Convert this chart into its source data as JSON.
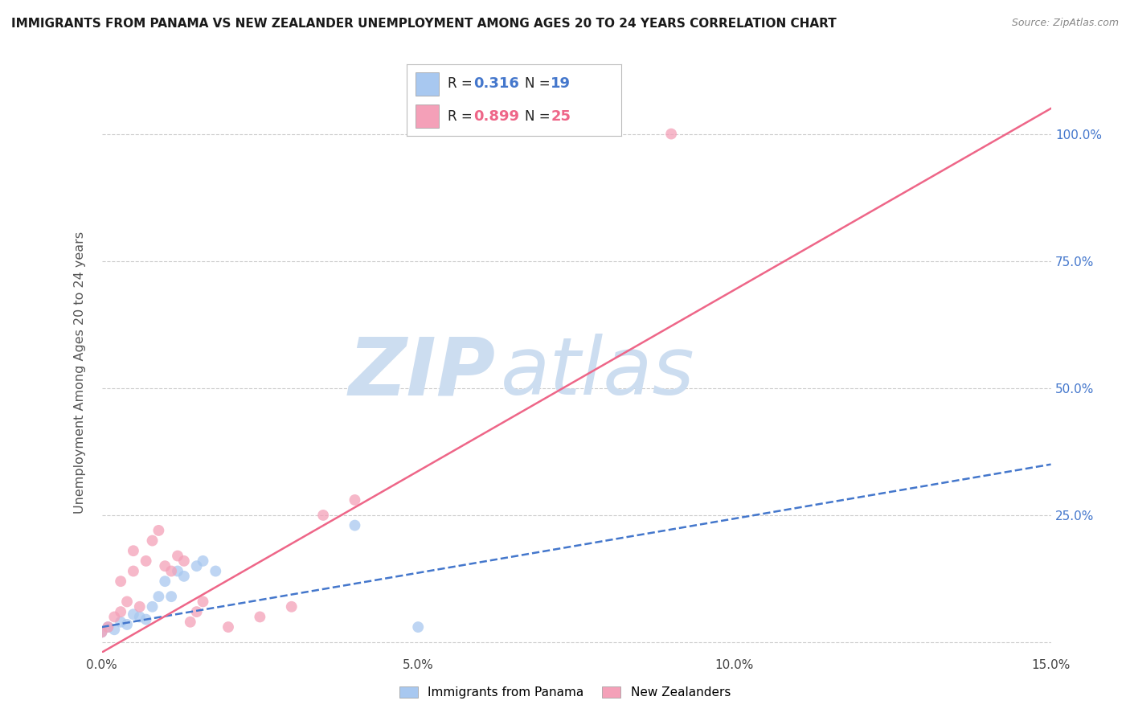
{
  "title": "IMMIGRANTS FROM PANAMA VS NEW ZEALANDER UNEMPLOYMENT AMONG AGES 20 TO 24 YEARS CORRELATION CHART",
  "source": "Source: ZipAtlas.com",
  "ylabel": "Unemployment Among Ages 20 to 24 years",
  "legend_label1": "Immigrants from Panama",
  "legend_label2": "New Zealanders",
  "R1": "0.316",
  "N1": "19",
  "R2": "0.899",
  "N2": "25",
  "xlim": [
    0.0,
    0.15
  ],
  "ylim": [
    -0.02,
    1.08
  ],
  "xticks": [
    0.0,
    0.05,
    0.1,
    0.15
  ],
  "xtick_labels": [
    "0.0%",
    "5.0%",
    "10.0%",
    "15.0%"
  ],
  "yticks": [
    0.0,
    0.25,
    0.5,
    0.75,
    1.0
  ],
  "ytick_labels_left": [
    "",
    "",
    "",
    "",
    ""
  ],
  "ytick_labels_right": [
    "",
    "25.0%",
    "50.0%",
    "75.0%",
    "100.0%"
  ],
  "color_blue": "#a8c8f0",
  "color_pink": "#f4a0b8",
  "color_blue_line": "#4477cc",
  "color_pink_line": "#ee6688",
  "color_grid": "#cccccc",
  "watermark_color": "#ccddf0",
  "blue_scatter_x": [
    0.0,
    0.001,
    0.002,
    0.003,
    0.004,
    0.005,
    0.006,
    0.007,
    0.008,
    0.009,
    0.01,
    0.011,
    0.012,
    0.013,
    0.015,
    0.016,
    0.018,
    0.04,
    0.05
  ],
  "blue_scatter_y": [
    0.02,
    0.03,
    0.025,
    0.04,
    0.035,
    0.055,
    0.05,
    0.045,
    0.07,
    0.09,
    0.12,
    0.09,
    0.14,
    0.13,
    0.15,
    0.16,
    0.14,
    0.23,
    0.03
  ],
  "pink_scatter_x": [
    0.0,
    0.001,
    0.002,
    0.003,
    0.003,
    0.004,
    0.005,
    0.005,
    0.006,
    0.007,
    0.008,
    0.009,
    0.01,
    0.011,
    0.012,
    0.013,
    0.014,
    0.015,
    0.016,
    0.02,
    0.025,
    0.03,
    0.035,
    0.04,
    0.09
  ],
  "pink_scatter_y": [
    0.02,
    0.03,
    0.05,
    0.06,
    0.12,
    0.08,
    0.14,
    0.18,
    0.07,
    0.16,
    0.2,
    0.22,
    0.15,
    0.14,
    0.17,
    0.16,
    0.04,
    0.06,
    0.08,
    0.03,
    0.05,
    0.07,
    0.25,
    0.28,
    1.0
  ],
  "blue_line_x": [
    0.0,
    0.15
  ],
  "blue_line_y": [
    0.03,
    0.35
  ],
  "pink_line_x": [
    0.0,
    0.15
  ],
  "pink_line_y": [
    -0.02,
    1.05
  ]
}
